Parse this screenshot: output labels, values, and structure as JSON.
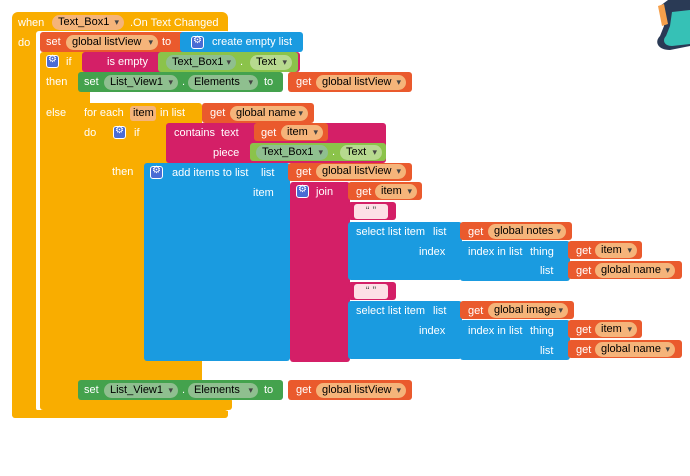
{
  "event": {
    "when": "when",
    "component": "Text_Box1",
    "event": ".On Text Changed",
    "do": "do"
  },
  "set1": {
    "set": "set",
    "var": "global listView",
    "to": "to"
  },
  "create_empty_list": "create empty list",
  "if_block": {
    "if": "if",
    "is_empty": "is empty",
    "then": "then",
    "else": "else"
  },
  "textbox": {
    "component": "Text_Box1",
    "dot": ".",
    "prop": "Text"
  },
  "set_list1": {
    "set": "set",
    "component": "List_View1",
    "dot": ".",
    "prop": "Elements",
    "to": "to",
    "get": "get",
    "var": "global listView"
  },
  "foreach": {
    "label": "for each",
    "item": "item",
    "in_list": "in list",
    "do": "do",
    "get": "get",
    "var": "global name"
  },
  "inner_if": {
    "if": "if",
    "then": "then"
  },
  "contains": {
    "label": "contains",
    "text": "text",
    "piece": "piece",
    "get": "get",
    "item": "item",
    "component": "Text_Box1",
    "dot": ".",
    "prop": "Text"
  },
  "add_items": {
    "label": "add items to list",
    "list": "list",
    "item": "item",
    "get": "get",
    "var": "global listView"
  },
  "join": {
    "label": "join",
    "get": "get",
    "item": "item",
    "string1": "“ ”",
    "string2": "“ ”"
  },
  "select1": {
    "label": "select list item",
    "list": "list",
    "index": "index",
    "get": "get",
    "var": "global notes"
  },
  "index_in_list1": {
    "label": "index in list",
    "thing": "thing",
    "list": "list",
    "get": "get",
    "item": "item",
    "var": "global name"
  },
  "select2": {
    "label": "select list item",
    "list": "list",
    "index": "index",
    "get": "get",
    "var": "global image"
  },
  "index_in_list2": {
    "label": "index in list",
    "thing": "thing",
    "list": "list",
    "get": "get",
    "item": "item",
    "var": "global name"
  },
  "set_list2": {
    "set": "set",
    "component": "List_View1",
    "dot": ".",
    "prop": "Elements",
    "to": "to",
    "get": "get",
    "var": "global listView"
  },
  "colors": {
    "event": "#f9ad00",
    "control": "#f9ad00",
    "variable": "#ea5a2d",
    "list": "#1a9be0",
    "text": "#d41f67",
    "component": "#44a24d",
    "property": "#8bc34a",
    "logic": "#d41f67"
  }
}
